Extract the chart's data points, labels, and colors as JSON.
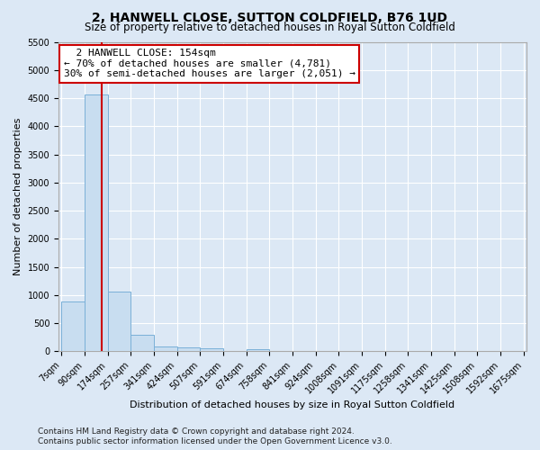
{
  "title": "2, HANWELL CLOSE, SUTTON COLDFIELD, B76 1UD",
  "subtitle": "Size of property relative to detached houses in Royal Sutton Coldfield",
  "xlabel": "Distribution of detached houses by size in Royal Sutton Coldfield",
  "ylabel": "Number of detached properties",
  "footnote1": "Contains HM Land Registry data © Crown copyright and database right 2024.",
  "footnote2": "Contains public sector information licensed under the Open Government Licence v3.0.",
  "annotation_title": "2 HANWELL CLOSE: 154sqm",
  "annotation_line1": "← 70% of detached houses are smaller (4,781)",
  "annotation_line2": "30% of semi-detached houses are larger (2,051) →",
  "property_size": 154,
  "bar_edges": [
    7,
    90,
    174,
    257,
    341,
    424,
    507,
    591,
    674,
    758,
    841,
    924,
    1008,
    1091,
    1175,
    1258,
    1341,
    1425,
    1508,
    1592,
    1675
  ],
  "bar_heights": [
    880,
    4560,
    1060,
    290,
    90,
    75,
    55,
    0,
    40,
    0,
    0,
    0,
    0,
    0,
    0,
    0,
    0,
    0,
    0,
    0
  ],
  "bar_color": "#c8ddf0",
  "bar_edge_color": "#7ab0d8",
  "vline_color": "#cc0000",
  "background_color": "#dce8f5",
  "grid_color": "#ffffff",
  "ylim_max": 5500,
  "ytick_step": 500,
  "title_fontsize": 10,
  "subtitle_fontsize": 8.5,
  "ylabel_fontsize": 8,
  "xlabel_fontsize": 8,
  "tick_fontsize": 7,
  "annot_fontsize": 8,
  "footnote_fontsize": 6.5
}
